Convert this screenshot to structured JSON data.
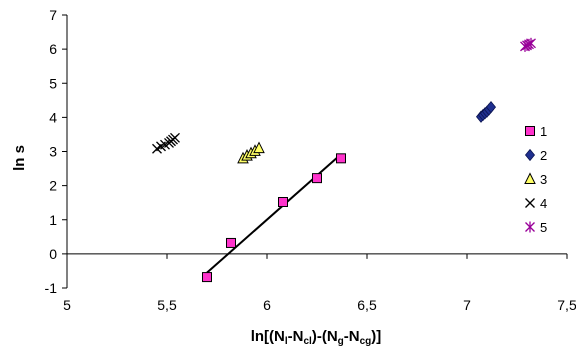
{
  "chart_data": {
    "type": "scatter",
    "xlim": [
      5,
      7.5
    ],
    "ylim": [
      -1,
      7
    ],
    "x_ticks": [
      "5",
      "5,5",
      "6",
      "6,5",
      "7",
      "7,5"
    ],
    "y_ticks": [
      "-1",
      "0",
      "1",
      "2",
      "3",
      "4",
      "5",
      "6",
      "7"
    ],
    "x_tick_values": [
      5,
      5.5,
      6,
      6.5,
      7,
      7.5
    ],
    "y_tick_values": [
      -1,
      0,
      1,
      2,
      3,
      4,
      5,
      6,
      7
    ],
    "ylabel": "ln s",
    "xlabel_parts": {
      "p1": "ln[(N",
      "s1": "l",
      "p2": "-N",
      "s2": "cl",
      "p3": ")-(N",
      "s3": "g",
      "p4": "-N",
      "s4": "cg",
      "p5": ")]"
    },
    "grid": false,
    "legend_position": "right",
    "series": [
      {
        "name": "1",
        "marker": "square",
        "color": "#ff33cc",
        "x": [
          5.7,
          5.82,
          6.08,
          6.25,
          6.37
        ],
        "y": [
          -0.68,
          0.32,
          1.52,
          2.22,
          2.8
        ]
      },
      {
        "name": "2",
        "marker": "diamond",
        "color": "#1f2f8f",
        "x": [
          7.07,
          7.08,
          7.09,
          7.1,
          7.11,
          7.12
        ],
        "y": [
          4.02,
          4.07,
          4.12,
          4.17,
          4.23,
          4.3
        ]
      },
      {
        "name": "3",
        "marker": "triangle",
        "color": "#ffff66",
        "x": [
          5.88,
          5.9,
          5.92,
          5.94,
          5.96
        ],
        "y": [
          2.8,
          2.88,
          2.95,
          3.02,
          3.1
        ]
      },
      {
        "name": "4",
        "marker": "x",
        "color": "#000000",
        "x": [
          5.45,
          5.47,
          5.49,
          5.51,
          5.52,
          5.53,
          5.54
        ],
        "y": [
          3.08,
          3.15,
          3.2,
          3.25,
          3.3,
          3.35,
          3.4
        ]
      },
      {
        "name": "5",
        "marker": "star",
        "color": "#990099",
        "x": [
          7.29,
          7.3,
          7.31,
          7.32
        ],
        "y": [
          6.08,
          6.11,
          6.14,
          6.17
        ]
      }
    ],
    "trendline": {
      "series": "1",
      "x": [
        5.7,
        6.37
      ],
      "y": [
        -0.55,
        2.92
      ],
      "color": "#000000"
    }
  }
}
